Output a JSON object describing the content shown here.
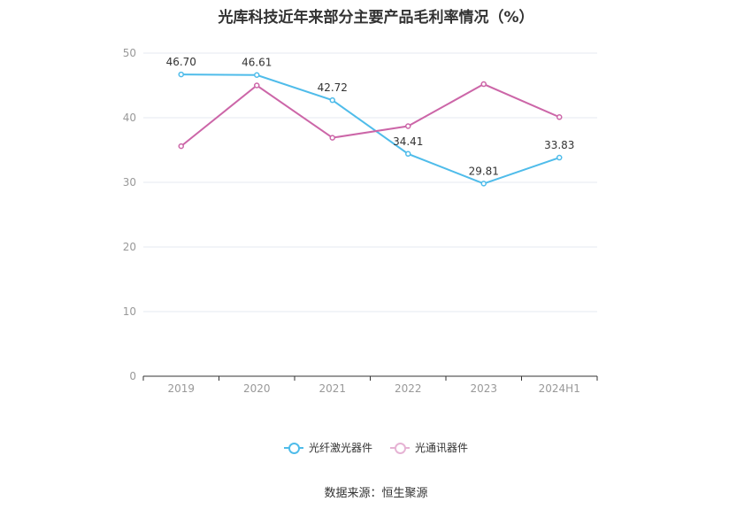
{
  "chart_data": {
    "type": "line",
    "title": "光库科技近年来部分主要产品毛利率情况（%）",
    "xlabel": "",
    "ylabel": "",
    "categories": [
      "2019",
      "2020",
      "2021",
      "2022",
      "2023",
      "2024H1"
    ],
    "ylim": [
      0,
      50
    ],
    "yticks": [
      0,
      10,
      20,
      30,
      40,
      50
    ],
    "grid": true,
    "legend_position": "bottom",
    "series": [
      {
        "name": "光纤激光器件",
        "color": "#4fbcea",
        "values": [
          46.7,
          46.61,
          42.72,
          34.41,
          29.81,
          33.83
        ],
        "labels": [
          "46.70",
          "46.61",
          "42.72",
          "34.41",
          "29.81",
          "33.83"
        ]
      },
      {
        "name": "光通讯器件",
        "color": "#cc66a8",
        "values": [
          35.6,
          45.0,
          36.9,
          38.7,
          45.2,
          40.1
        ]
      }
    ],
    "source": "数据来源：恒生聚源"
  }
}
